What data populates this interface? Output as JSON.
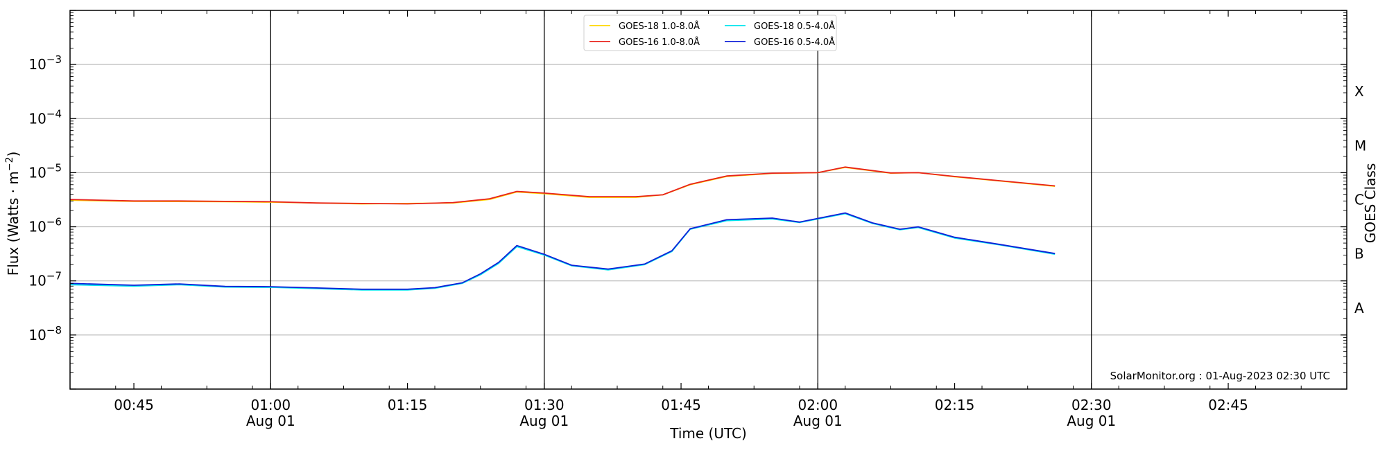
{
  "chart_data": {
    "type": "line",
    "title": "",
    "xlabel": "Time (UTC)",
    "ylabel": "Flux (Watts · m⁻²)",
    "right_ylabel": "GOES Class",
    "y_scale": "log",
    "ylim": [
      1e-09,
      0.01
    ],
    "xlim": [
      "2023-08-01T00:38",
      "2023-08-01T02:58"
    ],
    "grid": "horizontal at each decade",
    "legend_position": "top-center",
    "x_ticks": [
      {
        "time": "2023-08-01T00:45",
        "label": "00:45",
        "sublabel": ""
      },
      {
        "time": "2023-08-01T01:00",
        "label": "01:00",
        "sublabel": "Aug 01"
      },
      {
        "time": "2023-08-01T01:15",
        "label": "01:15",
        "sublabel": ""
      },
      {
        "time": "2023-08-01T01:30",
        "label": "01:30",
        "sublabel": "Aug 01"
      },
      {
        "time": "2023-08-01T01:45",
        "label": "01:45",
        "sublabel": ""
      },
      {
        "time": "2023-08-01T02:00",
        "label": "02:00",
        "sublabel": "Aug 01"
      },
      {
        "time": "2023-08-01T02:15",
        "label": "02:15",
        "sublabel": ""
      },
      {
        "time": "2023-08-01T02:30",
        "label": "02:30",
        "sublabel": "Aug 01"
      },
      {
        "time": "2023-08-01T02:45",
        "label": "02:45",
        "sublabel": ""
      }
    ],
    "vertical_lines": [
      "2023-08-01T01:00",
      "2023-08-01T01:30",
      "2023-08-01T02:00",
      "2023-08-01T02:30"
    ],
    "y_ticks": [
      {
        "value": 1e-08,
        "base": "10",
        "exp": "−8"
      },
      {
        "value": 1e-07,
        "base": "10",
        "exp": "−7"
      },
      {
        "value": 1e-06,
        "base": "10",
        "exp": "−6"
      },
      {
        "value": 1e-05,
        "base": "10",
        "exp": "−5"
      },
      {
        "value": 0.0001,
        "base": "10",
        "exp": "−4"
      },
      {
        "value": 0.001,
        "base": "10",
        "exp": "−3"
      }
    ],
    "goes_classes": [
      {
        "label": "A",
        "value": 3.16e-08
      },
      {
        "label": "B",
        "value": 3.16e-07
      },
      {
        "label": "C",
        "value": 3.16e-06
      },
      {
        "label": "M",
        "value": 3.16e-05
      },
      {
        "label": "X",
        "value": 0.000316
      }
    ],
    "series": [
      {
        "name": "GOES-18 1.0-8.0Å",
        "color": "#ffd700",
        "x": [
          "2023-08-01T00:38",
          "2023-08-01T00:45",
          "2023-08-01T00:55",
          "2023-08-01T01:00",
          "2023-08-01T01:10",
          "2023-08-01T01:20",
          "2023-08-01T01:24",
          "2023-08-01T01:27",
          "2023-08-01T01:30",
          "2023-08-01T01:35",
          "2023-08-01T01:40",
          "2023-08-01T01:43",
          "2023-08-01T01:46",
          "2023-08-01T01:50",
          "2023-08-01T01:55",
          "2023-08-01T02:00",
          "2023-08-01T02:03",
          "2023-08-01T02:08",
          "2023-08-01T02:11",
          "2023-08-01T02:15",
          "2023-08-01T02:20",
          "2023-08-01T02:26"
        ],
        "y": [
          3.1e-06,
          2.95e-06,
          2.9e-06,
          2.85e-06,
          2.65e-06,
          2.75e-06,
          3.2e-06,
          4.4e-06,
          4.1e-06,
          3.5e-06,
          3.5e-06,
          3.9e-06,
          6e-06,
          8.5e-06,
          9.7e-06,
          1e-05,
          1.25e-05,
          9.8e-06,
          1e-05,
          8.4e-06,
          7e-06,
          5.6e-06
        ]
      },
      {
        "name": "GOES-18 0.5-4.0Å",
        "color": "#00e5ee",
        "x": [
          "2023-08-01T00:38",
          "2023-08-01T00:45",
          "2023-08-01T00:50",
          "2023-08-01T00:55",
          "2023-08-01T01:00",
          "2023-08-01T01:05",
          "2023-08-01T01:10",
          "2023-08-01T01:15",
          "2023-08-01T01:18",
          "2023-08-01T01:21",
          "2023-08-01T01:23",
          "2023-08-01T01:25",
          "2023-08-01T01:27",
          "2023-08-01T01:30",
          "2023-08-01T01:33",
          "2023-08-01T01:37",
          "2023-08-01T01:41",
          "2023-08-01T01:44",
          "2023-08-01T01:46",
          "2023-08-01T01:50",
          "2023-08-01T01:55",
          "2023-08-01T01:58",
          "2023-08-01T02:03",
          "2023-08-01T02:06",
          "2023-08-01T02:09",
          "2023-08-01T02:11",
          "2023-08-01T02:15",
          "2023-08-01T02:20",
          "2023-08-01T02:26"
        ],
        "y": [
          8.5e-08,
          8e-08,
          8.5e-08,
          7.7e-08,
          7.6e-08,
          7.2e-08,
          6.8e-08,
          6.8e-08,
          7.3e-08,
          9e-08,
          1.3e-07,
          2.1e-07,
          4.3e-07,
          3e-07,
          1.9e-07,
          1.6e-07,
          2e-07,
          3.5e-07,
          9e-07,
          1.3e-06,
          1.4e-06,
          1.2e-06,
          1.75e-06,
          1.15e-06,
          8.8e-07,
          9.7e-07,
          6.2e-07,
          4.6e-07,
          3.1e-07
        ]
      },
      {
        "name": "GOES-16 1.0-8.0Å",
        "color": "#e8221b",
        "x": [
          "2023-08-01T00:38",
          "2023-08-01T00:45",
          "2023-08-01T00:50",
          "2023-08-01T00:55",
          "2023-08-01T01:00",
          "2023-08-01T01:05",
          "2023-08-01T01:10",
          "2023-08-01T01:15",
          "2023-08-01T01:20",
          "2023-08-01T01:24",
          "2023-08-01T01:27",
          "2023-08-01T01:30",
          "2023-08-01T01:35",
          "2023-08-01T01:40",
          "2023-08-01T01:43",
          "2023-08-01T01:46",
          "2023-08-01T01:50",
          "2023-08-01T01:55",
          "2023-08-01T02:00",
          "2023-08-01T02:03",
          "2023-08-01T02:08",
          "2023-08-01T02:11",
          "2023-08-01T02:15",
          "2023-08-01T02:20",
          "2023-08-01T02:26"
        ],
        "y": [
          3.2e-06,
          3e-06,
          3e-06,
          2.95e-06,
          2.9e-06,
          2.75e-06,
          2.7e-06,
          2.65e-06,
          2.8e-06,
          3.3e-06,
          4.5e-06,
          4.2e-06,
          3.6e-06,
          3.6e-06,
          3.9e-06,
          6.1e-06,
          8.7e-06,
          9.8e-06,
          1e-05,
          1.27e-05,
          9.9e-06,
          1e-05,
          8.5e-06,
          7.1e-06,
          5.7e-06
        ]
      },
      {
        "name": "GOES-16 0.5-4.0Å",
        "color": "#1020d8",
        "x": [
          "2023-08-01T00:38",
          "2023-08-01T00:45",
          "2023-08-01T00:50",
          "2023-08-01T00:55",
          "2023-08-01T01:00",
          "2023-08-01T01:05",
          "2023-08-01T01:10",
          "2023-08-01T01:15",
          "2023-08-01T01:18",
          "2023-08-01T01:21",
          "2023-08-01T01:23",
          "2023-08-01T01:25",
          "2023-08-01T01:27",
          "2023-08-01T01:30",
          "2023-08-01T01:33",
          "2023-08-01T01:37",
          "2023-08-01T01:41",
          "2023-08-01T01:44",
          "2023-08-01T01:46",
          "2023-08-01T01:50",
          "2023-08-01T01:55",
          "2023-08-01T01:58",
          "2023-08-01T02:03",
          "2023-08-01T02:06",
          "2023-08-01T02:09",
          "2023-08-01T02:11",
          "2023-08-01T02:15",
          "2023-08-01T02:20",
          "2023-08-01T02:26"
        ],
        "y": [
          9e-08,
          8.3e-08,
          8.8e-08,
          7.9e-08,
          7.8e-08,
          7.4e-08,
          7e-08,
          7e-08,
          7.5e-08,
          9.2e-08,
          1.35e-07,
          2.2e-07,
          4.5e-07,
          3.1e-07,
          1.95e-07,
          1.65e-07,
          2.05e-07,
          3.6e-07,
          9.2e-07,
          1.35e-06,
          1.45e-06,
          1.22e-06,
          1.8e-06,
          1.18e-06,
          9e-07,
          1e-06,
          6.4e-07,
          4.7e-07,
          3.2e-07
        ]
      }
    ],
    "legend_order": [
      0,
      1,
      2,
      3
    ]
  },
  "watermark": "SolarMonitor.org : 01-Aug-2023 02:30 UTC"
}
